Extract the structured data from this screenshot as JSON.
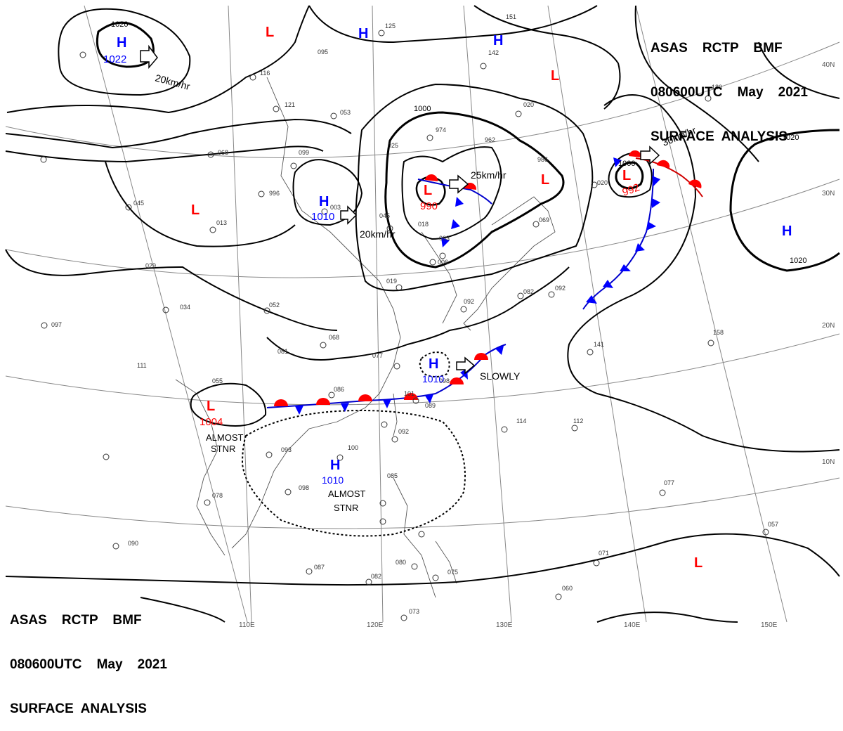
{
  "header_top": {
    "line1": "ASAS    RCTP    BMF",
    "line2": "080600UTC    May    2021",
    "line3": "SURFACE  ANALYSIS"
  },
  "header_bottom": {
    "line1": "ASAS    RCTP    BMF",
    "line2": "080600UTC    May    2021",
    "line3": "SURFACE  ANALYSIS"
  },
  "colors": {
    "high": "#0000ff",
    "low": "#ff0000",
    "isobar": "#000000",
    "grid": "#888888"
  },
  "lon_labels": [
    "110E",
    "120E",
    "130E",
    "140E",
    "150E"
  ],
  "lat_labels": [
    "10N",
    "20N",
    "30N",
    "40N"
  ],
  "isobar_labels": [
    "1020",
    "1000",
    "1000",
    "1020",
    "1020"
  ],
  "pressure_centers": [
    {
      "type": "H",
      "value": "1022"
    },
    {
      "type": "H",
      "value": ""
    },
    {
      "type": "H",
      "value": ""
    },
    {
      "type": "L",
      "value": ""
    },
    {
      "type": "L",
      "value": ""
    },
    {
      "type": "L",
      "value": ""
    },
    {
      "type": "H",
      "value": "1010"
    },
    {
      "type": "L",
      "value": ""
    },
    {
      "type": "L",
      "value": "990"
    },
    {
      "type": "L",
      "value": "992"
    },
    {
      "type": "H",
      "value": ""
    },
    {
      "type": "H",
      "value": "1010"
    },
    {
      "type": "L",
      "value": "1004"
    },
    {
      "type": "H",
      "value": "1010"
    },
    {
      "type": "L",
      "value": ""
    }
  ],
  "motion_labels": [
    "20km/hr",
    "20km/hr",
    "25km/hr",
    "30km/hr",
    "SLOWLY"
  ],
  "stationary_labels": [
    {
      "line1": "ALMOST",
      "line2": "STNR"
    },
    {
      "line1": "ALMOST",
      "line2": "STNR"
    }
  ],
  "station_obs": [
    "095",
    "116",
    "121",
    "053",
    "974",
    "962",
    "020",
    "986",
    "020",
    "068",
    "099",
    "996",
    "045",
    "013",
    "003",
    "045",
    "025",
    "029",
    "052",
    "034",
    "097",
    "111",
    "068",
    "081",
    "077",
    "086",
    "101",
    "089",
    "098",
    "092",
    "100",
    "093",
    "098",
    "078",
    "090",
    "087",
    "082",
    "080",
    "075",
    "073",
    "114",
    "112",
    "141",
    "158",
    "077",
    "057",
    "071",
    "060",
    "092",
    "082",
    "069",
    "019",
    "125",
    "151",
    "142",
    "180",
    "055",
    "085",
    "006",
    "018",
    "003",
    "092"
  ]
}
